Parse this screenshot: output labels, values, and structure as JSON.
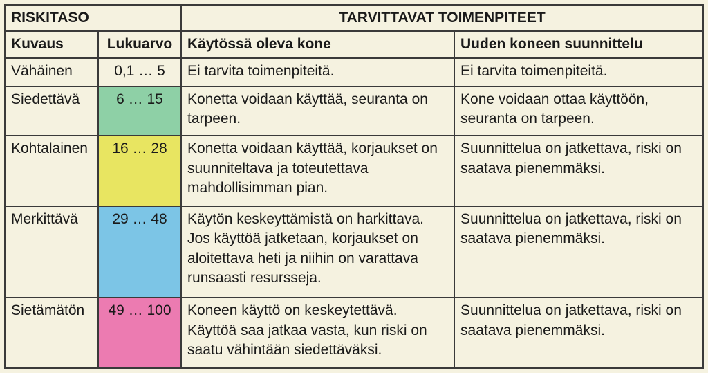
{
  "headers": {
    "risk_level": "RISKITASO",
    "actions": "TARVITTAVAT TOIMENPITEET",
    "description": "Kuvaus",
    "value": "Lukuarvo",
    "in_use": "Käytössä oleva kone",
    "new_design": "Uuden koneen suunnittelu"
  },
  "colors": {
    "page_bg": "#f5f2e0",
    "border": "#3a3a3a",
    "text": "#1a1a1a"
  },
  "rows": [
    {
      "desc": "Vähäinen",
      "range": "0,1 … 5",
      "bg": "#f5f2e0",
      "in_use": "Ei tarvita toimenpiteitä.",
      "new_design": "Ei tarvita toimenpiteitä."
    },
    {
      "desc": "Siedettävä",
      "range": "6 … 15",
      "bg": "#8ed0a6",
      "in_use": "Konetta voidaan käyttää, seuranta on tarpeen.",
      "new_design": "Kone voidaan ottaa käyttöön, seuranta on tarpeen."
    },
    {
      "desc": "Kohtalainen",
      "range": "16 … 28",
      "bg": "#e8e561",
      "in_use": "Konetta voidaan käyttää, korjaukset on suunniteltava ja toteutettava mahdollisimman pian.",
      "new_design": "Suunnittelua on jatkettava, riski on saatava pienemmäksi."
    },
    {
      "desc": "Merkittävä",
      "range": "29 … 48",
      "bg": "#7cc5e6",
      "in_use": "Käytön keskeyttämistä on harkittava. Jos käyttöä jatketaan, korjaukset on aloitettava heti ja niihin on varattava runsaasti resursseja.",
      "new_design": "Suunnittelua on jatkettava, riski on saatava pienemmäksi."
    },
    {
      "desc": "Sietämätön",
      "range": "49 … 100",
      "bg": "#ec7bb1",
      "in_use": "Koneen käyttö on keskeytettävä. Käyttöä saa jatkaa vasta, kun riski on saatu vähintään siedettäväksi.",
      "new_design": "Suunnittelua on jatkettava, riski on saatava pienemmäksi."
    }
  ]
}
